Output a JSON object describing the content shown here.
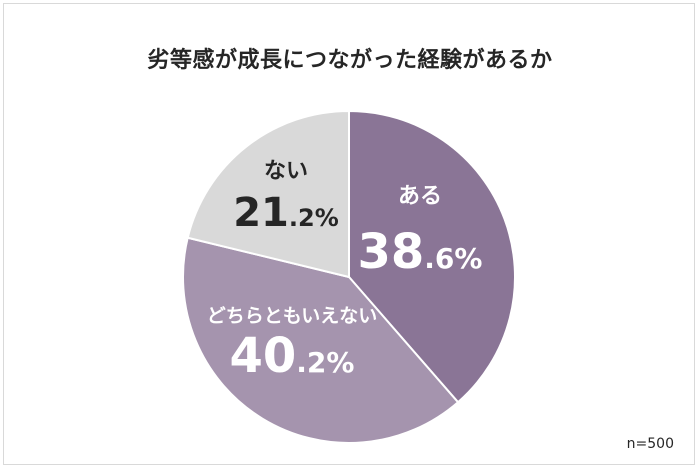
{
  "chart_data": {
    "type": "pie",
    "title": "劣等感が成長につながった経験があるか",
    "slices": [
      {
        "label": "ある",
        "int": "38",
        "dec": ".6%",
        "value": 38.6,
        "color": "#8a7596",
        "text_color": "#ffffff"
      },
      {
        "label": "どちらともいえない",
        "int": "40",
        "dec": ".2%",
        "value": 40.2,
        "color": "#a594ae",
        "text_color": "#ffffff"
      },
      {
        "label": "ない",
        "int": "21",
        "dec": ".2%",
        "value": 21.2,
        "color": "#d9d9d9",
        "text_color": "#262626"
      }
    ],
    "start": "12 o'clock",
    "direction": "clockwise",
    "note": "n=500"
  }
}
